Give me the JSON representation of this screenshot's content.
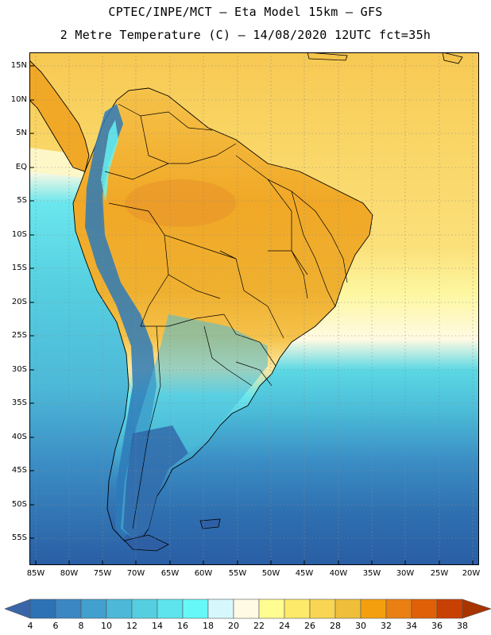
{
  "header": {
    "line1": "CPTEC/INPE/MCT –  Eta Model 15km – GFS",
    "line2": "2 Metre Temperature (C) – 14/08/2020 12UTC fct=35h"
  },
  "map": {
    "lon_range": [
      -86,
      -19
    ],
    "lat_range": [
      17,
      -59
    ],
    "lat_labels": [
      "15N",
      "10N",
      "5N",
      "EQ",
      "5S",
      "10S",
      "15S",
      "20S",
      "25S",
      "30S",
      "35S",
      "40S",
      "45S",
      "50S",
      "55S"
    ],
    "lat_values": [
      15,
      10,
      5,
      0,
      -5,
      -10,
      -15,
      -20,
      -25,
      -30,
      -35,
      -40,
      -45,
      -50,
      -55
    ],
    "lon_labels": [
      "85W",
      "80W",
      "75W",
      "70W",
      "65W",
      "60W",
      "55W",
      "50W",
      "45W",
      "40W",
      "35W",
      "30W",
      "25W",
      "20W"
    ],
    "lon_values": [
      -85,
      -80,
      -75,
      -70,
      -65,
      -60,
      -55,
      -50,
      -45,
      -40,
      -35,
      -30,
      -25,
      -20
    ],
    "colors": {
      "ocean_north": "#f9d463",
      "ocean_mid": "#fdf7a0",
      "ocean_cool": "#5bd8e4",
      "ocean_south": "#2a66a8",
      "land_hot": "#f1a826",
      "land_warm": "#f5c24a",
      "andes": "#2d7ab8",
      "patagonia": "#2e5fa4",
      "border": "#000000"
    }
  },
  "colorbar": {
    "labels": [
      "4",
      "6",
      "8",
      "10",
      "12",
      "14",
      "16",
      "18",
      "20",
      "22",
      "24",
      "26",
      "28",
      "30",
      "32",
      "34",
      "36",
      "38"
    ],
    "colors": [
      "#3a66a8",
      "#2d72b4",
      "#3a87c3",
      "#41a0cd",
      "#4db8d8",
      "#55cfe0",
      "#5de4ec",
      "#67f7f7",
      "#d6f8fd",
      "#fffae3",
      "#fffc90",
      "#fde96a",
      "#f8d552",
      "#efbf3a",
      "#f4a00e",
      "#ea8014",
      "#e06008",
      "#c84002",
      "#a83400"
    ]
  }
}
